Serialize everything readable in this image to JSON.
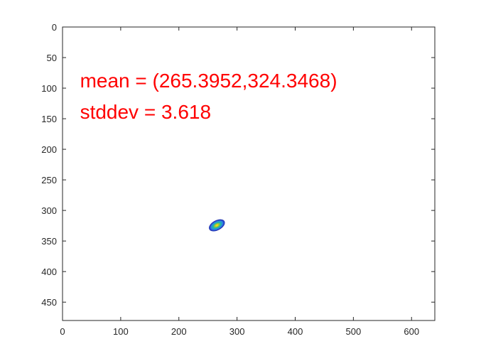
{
  "chart_data": {
    "type": "contour",
    "title": "",
    "xlabel": "",
    "ylabel": "",
    "xlim": [
      0,
      640
    ],
    "ylim": [
      0,
      480
    ],
    "y_reversed": true,
    "grid": false,
    "x_ticks": [
      0,
      100,
      200,
      300,
      400,
      500,
      600
    ],
    "y_ticks": [
      0,
      50,
      100,
      150,
      200,
      250,
      300,
      350,
      400,
      450
    ],
    "annotations": [
      {
        "text": "mean = (265.3952,324.3468)",
        "x": 30,
        "y": 99,
        "color": "#ff0000"
      },
      {
        "text": "stddev = 3.618",
        "x": 30,
        "y": 150,
        "color": "#ff0000"
      }
    ],
    "blob": {
      "center": [
        265.3952,
        324.3468
      ],
      "stddev": 3.618,
      "rotation_deg": -28,
      "colors": [
        "#2b4fd6",
        "#2a8fd8",
        "#22b7a5",
        "#8fc640",
        "#f2d31b"
      ]
    }
  }
}
